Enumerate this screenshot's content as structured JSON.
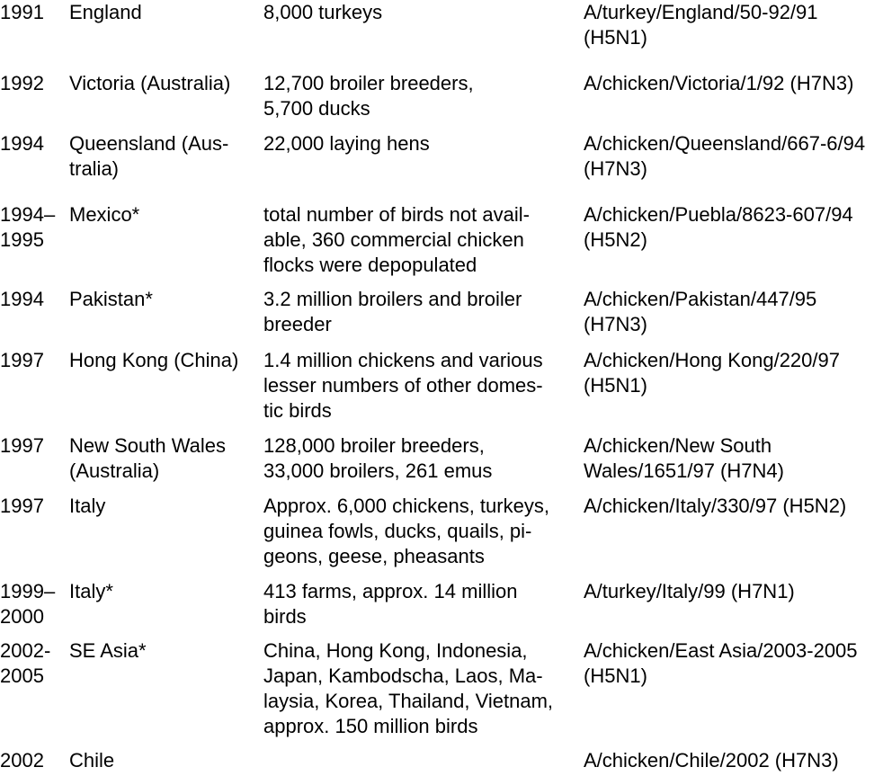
{
  "rows": [
    {
      "year": "1991",
      "place": "England",
      "birds": "8,000 turkeys",
      "virus": "A/turkey/England/50-92/91\n(H5N1)"
    },
    {
      "year": "1992",
      "place": "Victoria (Australia)",
      "birds": "12,700 broiler breeders,\n5,700 ducks",
      "virus": "A/chicken/Victoria/1/92 (H7N3)"
    },
    {
      "year": "1994",
      "place": "Queensland (Aus-\ntralia)",
      "birds": "22,000 laying hens",
      "virus": "A/chicken/Queensland/667-6/94\n(H7N3)"
    },
    {
      "year": "1994–\n1995",
      "place": "Mexico*",
      "birds": "total number of birds not avail-\nable, 360 commercial chicken\nflocks were depopulated",
      "virus": "A/chicken/Puebla/8623-607/94\n(H5N2)"
    },
    {
      "year": "1994",
      "place": "Pakistan*",
      "birds": "3.2 million broilers and broiler\nbreeder",
      "virus": "A/chicken/Pakistan/447/95\n(H7N3)"
    },
    {
      "year": "1997",
      "place": "Hong Kong (China)",
      "birds": "1.4 million chickens and various\nlesser numbers of other domes-\ntic birds",
      "virus": "A/chicken/Hong Kong/220/97\n(H5N1)"
    },
    {
      "year": "1997",
      "place": "New South Wales\n(Australia)",
      "birds": "128,000 broiler breeders,\n33,000 broilers, 261 emus",
      "virus": "A/chicken/New South\nWales/1651/97 (H7N4)"
    },
    {
      "year": "1997",
      "place": "Italy",
      "birds": "Approx. 6,000 chickens, turkeys,\nguinea fowls, ducks, quails, pi-\ngeons, geese, pheasants",
      "virus": "A/chicken/Italy/330/97 (H5N2)"
    },
    {
      "year": "1999–\n2000",
      "place": "Italy*",
      "birds": "413 farms, approx. 14 million\nbirds",
      "virus": "A/turkey/Italy/99 (H7N1)"
    },
    {
      "year": "2002-\n2005",
      "place": "SE Asia*",
      "birds": "China, Hong Kong, Indonesia,\nJapan, Kambodscha, Laos, Ma-\nlaysia, Korea, Thailand, Vietnam,\napprox. 150 million birds",
      "virus": "A/chicken/East Asia/2003-2005\n(H5N1)"
    },
    {
      "year": "2002",
      "place": "Chile",
      "birds": "",
      "virus": "A/chicken/Chile/2002 (H7N3)"
    }
  ]
}
